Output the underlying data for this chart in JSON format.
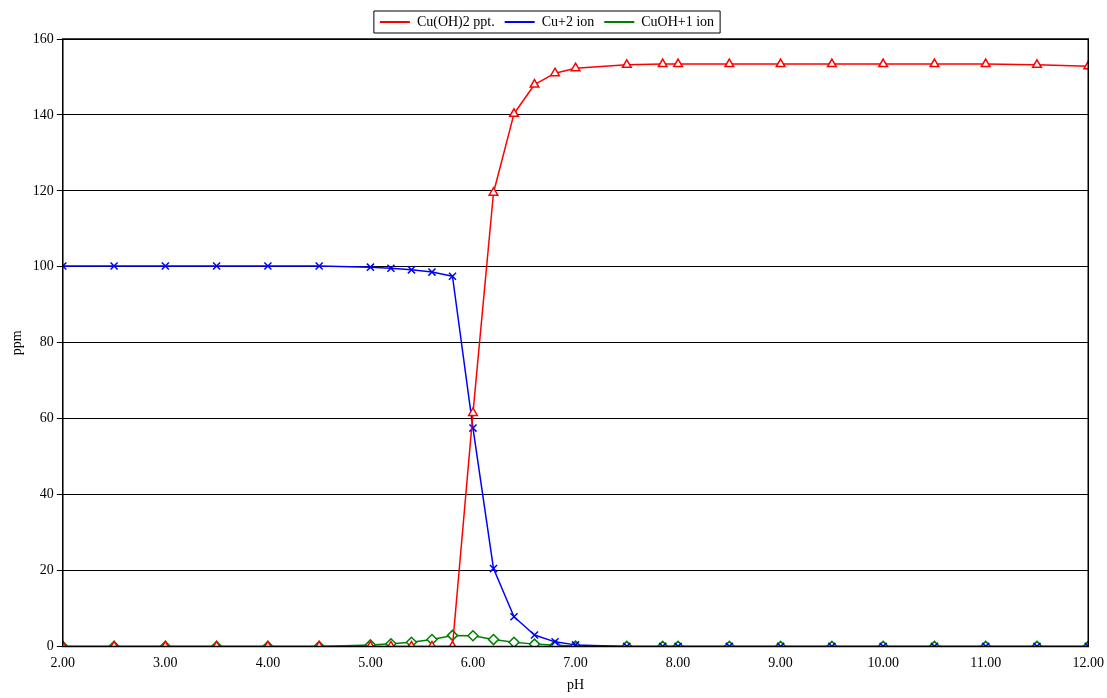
{
  "chart_data": {
    "type": "line",
    "xlabel": "pH",
    "ylabel": "ppm",
    "x": [
      2,
      2.5,
      3,
      3.5,
      4,
      4.5,
      5,
      5.2,
      5.4,
      5.6,
      5.8,
      6,
      6.2,
      6.4,
      6.6,
      6.8,
      7,
      7.5,
      7.85,
      8,
      8.5,
      9,
      9.5,
      10,
      10.5,
      11,
      11.5,
      12
    ],
    "series": [
      {
        "name": "Cu(OH)2 ppt.",
        "color": "#ff0000",
        "marker": "triangle",
        "values": [
          0,
          0,
          0,
          0,
          0,
          0,
          0,
          0,
          0,
          0,
          0,
          61.5,
          119.5,
          140.3,
          148,
          151,
          152.3,
          153.2,
          153.4,
          153.4,
          153.4,
          153.4,
          153.4,
          153.4,
          153.4,
          153.4,
          153.2,
          152.8
        ]
      },
      {
        "name": "Cu+2 ion",
        "color": "#0000ff",
        "marker": "cross",
        "values": [
          100.2,
          100.2,
          100.2,
          100.2,
          100.2,
          100.2,
          99.9,
          99.6,
          99.2,
          98.6,
          97.5,
          57.5,
          20.5,
          7.8,
          3,
          1.2,
          0.4,
          0,
          0,
          0,
          0,
          0,
          0,
          0,
          0,
          0,
          0,
          0
        ]
      },
      {
        "name": "CuOH+1 ion",
        "color": "#008000",
        "marker": "diamond",
        "values": [
          0,
          0,
          0,
          0,
          0,
          0,
          0.4,
          0.7,
          1.1,
          1.8,
          2.9,
          2.8,
          1.8,
          1.1,
          0.6,
          0.3,
          0.1,
          0,
          0,
          0,
          0,
          0,
          0,
          0,
          0,
          0,
          0,
          0
        ]
      }
    ],
    "xlim": [
      2,
      12
    ],
    "xticks": [
      {
        "value": 2,
        "label": "2.00"
      },
      {
        "value": 3,
        "label": "3.00"
      },
      {
        "value": 4,
        "label": "4.00"
      },
      {
        "value": 5,
        "label": "5.00"
      },
      {
        "value": 6,
        "label": "6.00"
      },
      {
        "value": 7,
        "label": "7.00"
      },
      {
        "value": 8,
        "label": "8.00"
      },
      {
        "value": 9,
        "label": "9.00"
      },
      {
        "value": 10,
        "label": "10.00"
      },
      {
        "value": 11,
        "label": "11.00"
      },
      {
        "value": 12,
        "label": "12.00"
      }
    ],
    "ylim": [
      0,
      160
    ],
    "yticks": [
      0,
      20,
      40,
      60,
      80,
      100,
      120,
      140,
      160
    ],
    "grid": "y",
    "legend": "top",
    "line_style": "solid"
  }
}
